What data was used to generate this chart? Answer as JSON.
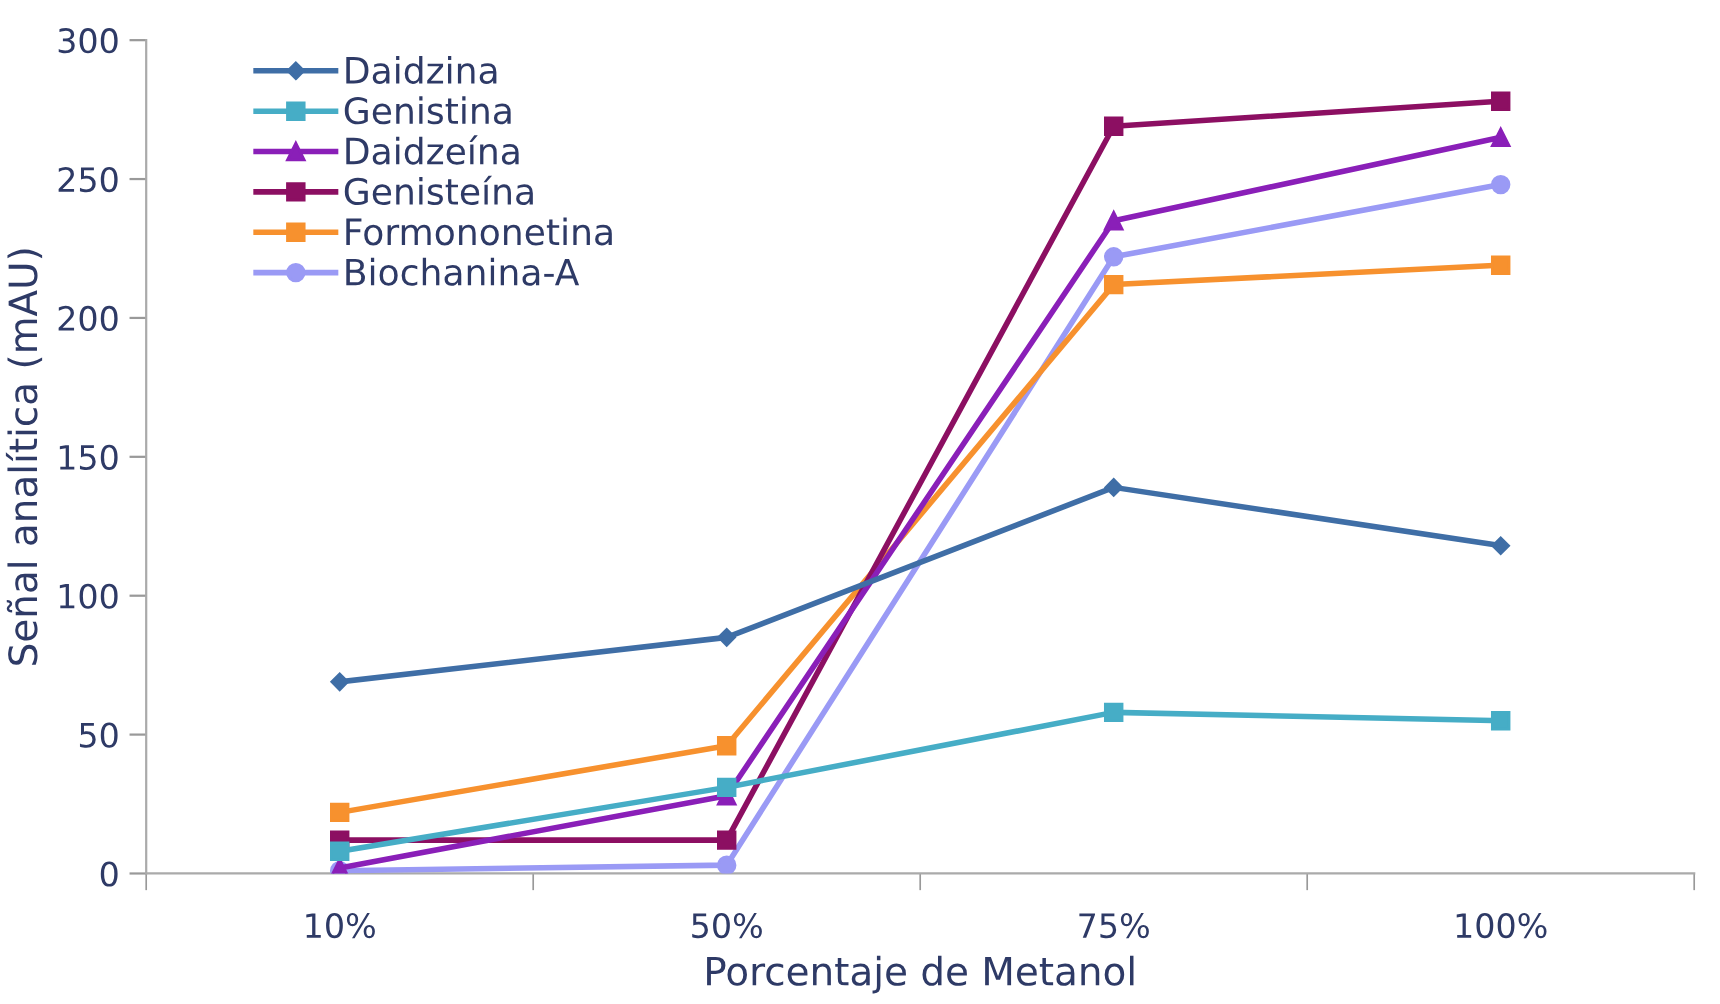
{
  "chart_data": {
    "type": "line",
    "xlabel": "Porcentaje de Metanol",
    "ylabel": "Señal analítica (mAU)",
    "categories": [
      "10%",
      "50%",
      "75%",
      "100%"
    ],
    "ylim": [
      0,
      300
    ],
    "yticks": [
      0,
      50,
      100,
      150,
      200,
      250,
      300
    ],
    "grid": false,
    "legend": "top left",
    "series": [
      {
        "name": "Daidzina",
        "color": "#3f6ea6",
        "marker": "diamond",
        "values": [
          69,
          85,
          139,
          118
        ]
      },
      {
        "name": "Genistina",
        "color": "#46adc6",
        "marker": "square",
        "values": [
          8,
          31,
          58,
          55
        ]
      },
      {
        "name": "Daidzeína",
        "color": "#8a1fb8",
        "marker": "triangle",
        "values": [
          2,
          28,
          235,
          265
        ]
      },
      {
        "name": "Genisteína",
        "color": "#8c0f62",
        "marker": "square",
        "values": [
          12,
          12,
          269,
          278
        ]
      },
      {
        "name": "Formononetina",
        "color": "#f7912e",
        "marker": "square",
        "values": [
          22,
          46,
          212,
          219
        ]
      },
      {
        "name": "Biochanina-A",
        "color": "#9a9af5",
        "marker": "circle",
        "values": [
          1,
          3,
          222,
          248
        ]
      }
    ]
  }
}
